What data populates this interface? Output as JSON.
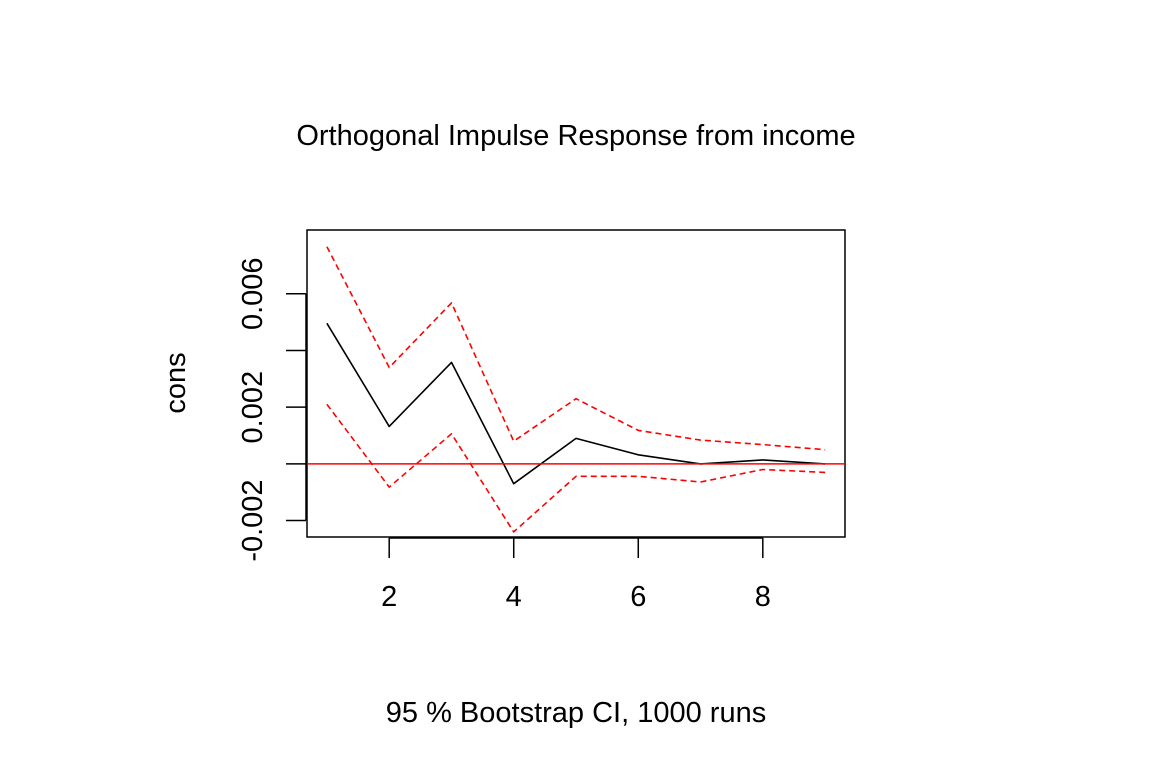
{
  "chart_data": {
    "type": "line",
    "title": "Orthogonal Impulse Response from income",
    "xlabel": "95 % Bootstrap CI,  1000 runs",
    "ylabel": "cons",
    "xlim": [
      0.68,
      9.32
    ],
    "ylim": [
      -0.00258,
      0.00825
    ],
    "xticks": [
      2,
      4,
      6,
      8
    ],
    "xtick_labels": [
      "2",
      "4",
      "6",
      "8"
    ],
    "yticks": [
      -0.002,
      0,
      0.002,
      0.004,
      0.006
    ],
    "ytick_labels": [
      "-0.002",
      "",
      "0.002",
      "",
      "0.006"
    ],
    "grid": false,
    "legend": "none",
    "x": [
      1,
      2,
      3,
      4,
      5,
      6,
      7,
      8,
      9
    ],
    "series": [
      {
        "role": "estimate",
        "line_style": "solid",
        "color": "#000000",
        "values": [
          0.00496,
          0.00132,
          0.00358,
          -0.0007,
          0.0009,
          0.00032,
          0.0,
          0.00014,
          0.0
        ]
      },
      {
        "role": "upper CI",
        "line_style": "dashed",
        "color": "#ff0000",
        "values": [
          0.00766,
          0.0034,
          0.00568,
          0.0008,
          0.0023,
          0.00118,
          0.00084,
          0.00068,
          0.0005
        ]
      },
      {
        "role": "lower CI",
        "line_style": "dashed",
        "color": "#ff0000",
        "values": [
          0.0021,
          -0.00082,
          0.00106,
          -0.0024,
          -0.00044,
          -0.00044,
          -0.00064,
          -0.0002,
          -0.0003
        ]
      }
    ],
    "reference_line": {
      "y": 0,
      "color": "#ff0000"
    }
  }
}
